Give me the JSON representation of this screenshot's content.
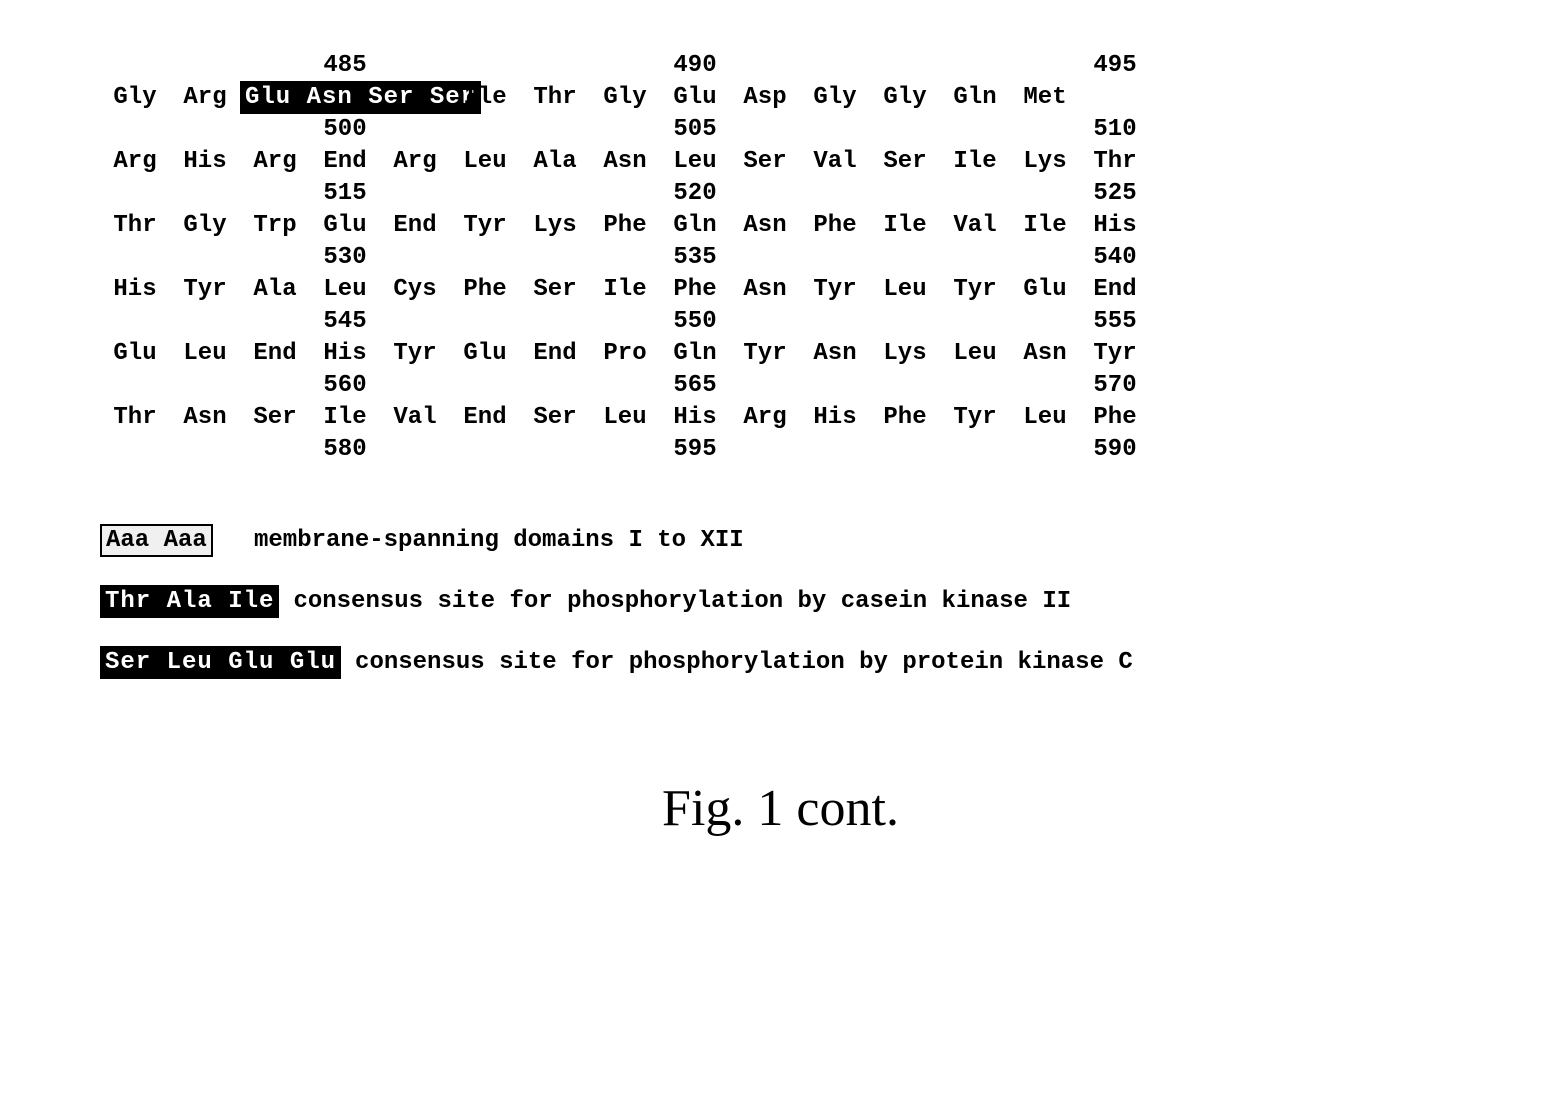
{
  "sequence": {
    "positions": [
      {
        "cols": [
          null,
          null,
          null,
          "485",
          null,
          null,
          null,
          null,
          "490",
          null,
          null,
          null,
          null,
          null,
          "495"
        ]
      },
      {
        "cols": [
          null,
          null,
          null,
          "500",
          null,
          null,
          null,
          null,
          "505",
          null,
          null,
          null,
          null,
          null,
          "510"
        ]
      },
      {
        "cols": [
          null,
          null,
          null,
          "515",
          null,
          null,
          null,
          null,
          "520",
          null,
          null,
          null,
          null,
          null,
          "525"
        ]
      },
      {
        "cols": [
          null,
          null,
          null,
          "530",
          null,
          null,
          null,
          null,
          "535",
          null,
          null,
          null,
          null,
          null,
          "540"
        ]
      },
      {
        "cols": [
          null,
          null,
          null,
          "545",
          null,
          null,
          null,
          null,
          "550",
          null,
          null,
          null,
          null,
          null,
          "555"
        ]
      },
      {
        "cols": [
          null,
          null,
          null,
          "560",
          null,
          null,
          null,
          null,
          "565",
          null,
          null,
          null,
          null,
          null,
          "570"
        ]
      },
      {
        "cols": [
          null,
          null,
          null,
          "580",
          null,
          null,
          null,
          null,
          "595",
          null,
          null,
          null,
          null,
          null,
          "590"
        ]
      }
    ],
    "residues": [
      [
        {
          "text": "Gly"
        },
        {
          "text": "Arg"
        },
        {
          "text": "Glu Asn Ser Ser",
          "style": "dark",
          "span": 3
        },
        {
          "text": "Ile"
        },
        {
          "text": "Thr"
        },
        {
          "text": "Gly"
        },
        {
          "text": "Glu"
        },
        {
          "text": "Asp"
        },
        {
          "text": "Gly"
        },
        {
          "text": "Gly"
        },
        {
          "text": "Gln"
        },
        {
          "text": "Met"
        }
      ],
      [
        {
          "text": "Arg"
        },
        {
          "text": "His"
        },
        {
          "text": "Arg"
        },
        {
          "text": "End"
        },
        {
          "text": "Arg"
        },
        {
          "text": "Leu"
        },
        {
          "text": "Ala"
        },
        {
          "text": "Asn"
        },
        {
          "text": "Leu"
        },
        {
          "text": "Ser"
        },
        {
          "text": "Val"
        },
        {
          "text": "Ser"
        },
        {
          "text": "Ile"
        },
        {
          "text": "Lys"
        },
        {
          "text": "Thr"
        }
      ],
      [
        {
          "text": "Thr"
        },
        {
          "text": "Gly"
        },
        {
          "text": "Trp"
        },
        {
          "text": "Glu"
        },
        {
          "text": "End"
        },
        {
          "text": "Tyr"
        },
        {
          "text": "Lys"
        },
        {
          "text": "Phe"
        },
        {
          "text": "Gln"
        },
        {
          "text": "Asn"
        },
        {
          "text": "Phe"
        },
        {
          "text": "Ile"
        },
        {
          "text": "Val"
        },
        {
          "text": "Ile"
        },
        {
          "text": "His"
        }
      ],
      [
        {
          "text": "His"
        },
        {
          "text": "Tyr"
        },
        {
          "text": "Ala"
        },
        {
          "text": "Leu"
        },
        {
          "text": "Cys"
        },
        {
          "text": "Phe"
        },
        {
          "text": "Ser"
        },
        {
          "text": "Ile"
        },
        {
          "text": "Phe"
        },
        {
          "text": "Asn"
        },
        {
          "text": "Tyr"
        },
        {
          "text": "Leu"
        },
        {
          "text": "Tyr"
        },
        {
          "text": "Glu"
        },
        {
          "text": "End"
        }
      ],
      [
        {
          "text": "Glu"
        },
        {
          "text": "Leu"
        },
        {
          "text": "End"
        },
        {
          "text": "His"
        },
        {
          "text": "Tyr"
        },
        {
          "text": "Glu"
        },
        {
          "text": "End"
        },
        {
          "text": "Pro"
        },
        {
          "text": "Gln"
        },
        {
          "text": "Tyr"
        },
        {
          "text": "Asn"
        },
        {
          "text": "Lys"
        },
        {
          "text": "Leu"
        },
        {
          "text": "Asn"
        },
        {
          "text": "Tyr"
        }
      ],
      [
        {
          "text": "Thr"
        },
        {
          "text": "Asn"
        },
        {
          "text": "Ser"
        },
        {
          "text": "Ile"
        },
        {
          "text": "Val"
        },
        {
          "text": "End"
        },
        {
          "text": "Ser"
        },
        {
          "text": "Leu"
        },
        {
          "text": "His"
        },
        {
          "text": "Arg"
        },
        {
          "text": "His"
        },
        {
          "text": "Phe"
        },
        {
          "text": "Tyr"
        },
        {
          "text": "Leu"
        },
        {
          "text": "Phe"
        }
      ]
    ]
  },
  "legend": {
    "item1": {
      "label": "Aaa Aaa",
      "desc": "membrane-spanning domains I to XII"
    },
    "item2": {
      "label": "Thr Ala Ile",
      "desc": "consensus site for phosphorylation by casein kinase II"
    },
    "item3": {
      "label": "Ser Leu Glu Glu",
      "desc": "consensus site for phosphorylation by protein kinase C"
    }
  },
  "figure_title": "Fig. 1 cont.",
  "colors": {
    "background": "#ffffff",
    "text": "#000000",
    "highlight_bg": "#000000",
    "highlight_fg": "#ffffff"
  },
  "typography": {
    "mono_font": "Courier New",
    "title_font": "Georgia",
    "residue_fontsize": 24,
    "title_fontsize": 52
  }
}
